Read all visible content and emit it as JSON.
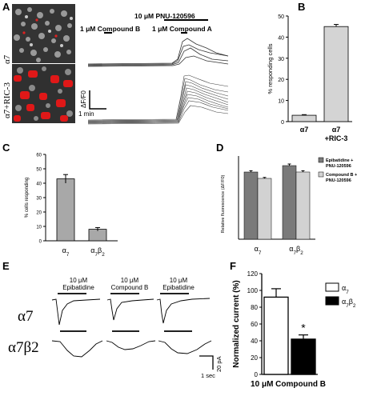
{
  "panels": {
    "A": {
      "label": "A",
      "row_labels": [
        "α7",
        "α7+RIC-3"
      ],
      "stim": {
        "compound_b": "1 μM Compound B",
        "pnu": "10 μM PNU-120596",
        "compound_a": "1 μM Compound A"
      },
      "scale_y": "ΔF/F0",
      "scale_x": "1 min"
    },
    "B": {
      "label": "B"
    },
    "C": {
      "label": "C"
    },
    "D": {
      "label": "D"
    },
    "E": {
      "label": "E",
      "stim": [
        {
          "conc": "10 μM",
          "name": "Epibatidine"
        },
        {
          "conc": "10 μM",
          "name": "Compound B"
        },
        {
          "conc": "10 μM",
          "name": "Epibatidine"
        }
      ],
      "rows": [
        "α7",
        "α7β2"
      ],
      "scale_y": "20 pA",
      "scale_x": "1 sec"
    },
    "F": {
      "label": "F"
    }
  },
  "chart_data": [
    {
      "panel": "B",
      "type": "bar",
      "categories": [
        "α7",
        "α7+RIC-3"
      ],
      "values": [
        3,
        45
      ],
      "errors": [
        0.3,
        1
      ],
      "ylabel": "% responding cells",
      "ylim": [
        0,
        50
      ],
      "yticks": [
        0,
        10,
        20,
        30,
        40,
        50
      ],
      "colors": [
        "#d4d4d4",
        "#d4d4d4"
      ]
    },
    {
      "panel": "C",
      "type": "bar",
      "categories": [
        "α7",
        "α7β2"
      ],
      "values": [
        43,
        8
      ],
      "errors": [
        3,
        1.2
      ],
      "ylabel": "% cells responding",
      "ylim": [
        0,
        60
      ],
      "yticks": [
        0,
        10,
        20,
        30,
        40,
        50,
        60
      ],
      "colors": [
        "#a8a8a8",
        "#a8a8a8"
      ]
    },
    {
      "panel": "D",
      "type": "bar",
      "categories": [
        "α7",
        "α7β2"
      ],
      "series": [
        {
          "name": "Epibatidine + PNU-120596",
          "values": [
            2.1,
            2.3
          ],
          "errors": [
            0.04,
            0.05
          ],
          "color": "#7a7a7a"
        },
        {
          "name": "Compound B + PNU-120596",
          "values": [
            1.9,
            2.1
          ],
          "errors": [
            0.03,
            0.04
          ],
          "color": "#d2d2d2"
        }
      ],
      "ylabel": "Relative fluorescence (ΔF/F0)",
      "ylim": [
        0,
        2.6
      ],
      "legend": "right"
    },
    {
      "panel": "F",
      "type": "bar",
      "categories": [
        "α7",
        "α7β2"
      ],
      "values": [
        92,
        42
      ],
      "errors": [
        10,
        5
      ],
      "ylabel": "Normalized current (%)",
      "xlabel": "10 μM Compound B",
      "ylim": [
        0,
        120
      ],
      "yticks": [
        0,
        20,
        40,
        60,
        80,
        100,
        120
      ],
      "legend_items": [
        "α7",
        "α7β2"
      ],
      "legend": "top-right",
      "significance": "*",
      "colors": [
        "#ffffff",
        "#000000"
      ]
    }
  ]
}
